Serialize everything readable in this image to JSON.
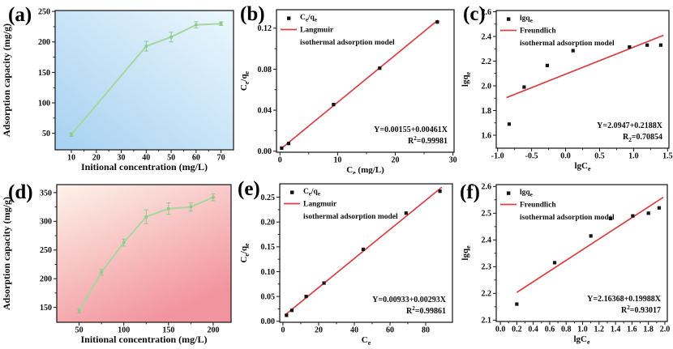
{
  "figure_title": "Adsorption isotherm figure panels",
  "accent_colors": {
    "fit_line_red": "#d84048",
    "curve_green": "#a6d79f",
    "marker_black": "#141414"
  },
  "chart_data": [
    {
      "id": "a",
      "tag": "(a)",
      "type": "line",
      "xlabel": "Initional concentration (mg/L)",
      "ylabel": "Adsorption capacity (mg/g)",
      "x": [
        10,
        40,
        50,
        60,
        70
      ],
      "y": [
        48,
        193,
        208,
        228,
        230
      ],
      "yerr": [
        3,
        8,
        8,
        5,
        3
      ],
      "xticks": [
        "10",
        "20",
        "30",
        "40",
        "50",
        "60",
        "70"
      ],
      "yticks": [
        "50",
        "100",
        "150",
        "200",
        "250"
      ],
      "xlim": [
        3.5,
        75
      ],
      "ylim": [
        23,
        251.5
      ],
      "grid": false,
      "line_color": "#a6d79f",
      "marker_color": "#8fc98b",
      "bg": {
        "from": "#ecf7fd",
        "to": "#a6d1f1",
        "direction": "tr-bl"
      }
    },
    {
      "id": "b",
      "tag": "(b)",
      "type": "scatter",
      "xlabel": "C~e~ (mg/L)",
      "ylabel": "C~e~/q~e~",
      "points_x": [
        0.3,
        1.5,
        9.3,
        17.3,
        27.3
      ],
      "points_y": [
        0.003,
        0.0075,
        0.0455,
        0.081,
        0.126
      ],
      "fit_line": {
        "intercept": 0.00155,
        "slope": 0.00461,
        "x_start": 0.2,
        "x_end": 27.4,
        "color": "#d84048"
      },
      "legend": {
        "marker_label": "C~e~/q~e~",
        "line_label": "Langmuir",
        "line_label2": "isothermal adsorption model",
        "position": "top-left"
      },
      "annotations": [
        "Y=0.00155+0.00461X",
        "R^2^=0.99981"
      ],
      "xticks": [
        "0",
        "10",
        "20",
        "30"
      ],
      "yticks": [
        "0.00",
        "0.04",
        "0.08",
        "0.12"
      ],
      "xlim": [
        -0.6,
        30.2
      ],
      "ylim": [
        -0.001,
        0.138
      ],
      "grid": false,
      "marker_color": "#141414"
    },
    {
      "id": "c",
      "tag": "(c)",
      "type": "scatter",
      "xlabel": "lgC~e~",
      "ylabel": "lgq~e~",
      "points_x": [
        -0.83,
        -0.61,
        -0.27,
        0.11,
        0.94,
        1.2,
        1.4
      ],
      "points_y": [
        1.69,
        1.99,
        2.165,
        2.285,
        2.315,
        2.33,
        2.33
      ],
      "fit_line": {
        "intercept": 2.0947,
        "slope": 0.2188,
        "x_start": -0.87,
        "x_end": 1.44,
        "color": "#d84048"
      },
      "legend": {
        "marker_label": "lgq~e~",
        "line_label": "Freundlich",
        "line_label2": "isothermal adsorption model",
        "position": "top-left"
      },
      "annotations": [
        "Y=2.0947+0.2188X",
        "R~2~=0.70854"
      ],
      "xticks": [
        "-1.0",
        "-0.5",
        "0.0",
        "0.5",
        "1.0",
        "1.5"
      ],
      "yticks": [
        "1.6",
        "1.8",
        "2.0",
        "2.2",
        "2.4",
        "2.6"
      ],
      "xlim": [
        -1.02,
        1.52
      ],
      "ylim": [
        1.495,
        2.61
      ],
      "grid": false,
      "marker_color": "#141414"
    },
    {
      "id": "d",
      "tag": "(d)",
      "type": "line",
      "xlabel": "Initional concentration (mg/L)",
      "ylabel": "Adsorption capacity (mg/g)",
      "x": [
        50,
        75,
        100,
        125,
        150,
        175,
        200
      ],
      "y": [
        144,
        211,
        263,
        308,
        322,
        325,
        342
      ],
      "yerr": [
        4,
        5,
        6,
        12,
        10,
        7,
        6
      ],
      "xticks": [
        "50",
        "100",
        "150",
        "200"
      ],
      "yticks": [
        "150",
        "200",
        "250",
        "300",
        "350"
      ],
      "xlim": [
        25,
        220
      ],
      "ylim": [
        124,
        364
      ],
      "grid": false,
      "line_color": "#a6d79f",
      "marker_color": "#8fc98b",
      "bg": {
        "from": "#fdf4ea",
        "to": "#f2949e",
        "direction": "tl-br"
      }
    },
    {
      "id": "e",
      "tag": "(e)",
      "type": "scatter",
      "xlabel": "C~e~",
      "ylabel": "C~e~/q~e~",
      "points_x": [
        2,
        5,
        13,
        23,
        45,
        69,
        88
      ],
      "points_y": [
        0.012,
        0.022,
        0.05,
        0.077,
        0.145,
        0.218,
        0.262
      ],
      "fit_line": {
        "intercept": 0.00933,
        "slope": 0.00293,
        "x_start": 1.0,
        "x_end": 89.0,
        "color": "#d84048"
      },
      "legend": {
        "marker_label": "C~e~/q~e~",
        "line_label": "Langmuir",
        "line_label2": "isothermal adsorption model",
        "position": "top-left"
      },
      "annotations": [
        "Y=0.00933+0.00293X",
        "R^2^=0.99861"
      ],
      "xticks": [
        "0",
        "20",
        "40",
        "60",
        "80"
      ],
      "yticks": [
        "0.00",
        "0.05",
        "0.10",
        "0.15",
        "0.20",
        "0.25"
      ],
      "xlim": [
        -1.8,
        95
      ],
      "ylim": [
        -0.002,
        0.277
      ],
      "grid": false,
      "marker_color": "#141414"
    },
    {
      "id": "f",
      "tag": "(f)",
      "type": "scatter",
      "xlabel": "lgC~e~",
      "ylabel": "lgq~e~",
      "points_x": [
        0.2,
        0.66,
        1.1,
        1.34,
        1.61,
        1.8,
        1.93
      ],
      "points_y": [
        2.16,
        2.315,
        2.415,
        2.48,
        2.49,
        2.5,
        2.52
      ],
      "fit_line": {
        "intercept": 2.16368,
        "slope": 0.19988,
        "x_start": 0.2,
        "x_end": 1.98,
        "color": "#d84048"
      },
      "legend": {
        "marker_label": "lgq~e~",
        "line_label": "Freundlich",
        "line_label2": "isothermal adsorption model",
        "position": "top-left"
      },
      "annotations": [
        "Y=2.16368+0.19988X",
        "R^2^=0.93017"
      ],
      "xticks": [
        "0.0",
        "0.2",
        "0.4",
        "0.6",
        "0.8",
        "1.0",
        "1.2",
        "1.4",
        "1.6",
        "1.8",
        "2.0"
      ],
      "yticks": [
        "2.1",
        "2.2",
        "2.3",
        "2.4",
        "2.5",
        "2.6"
      ],
      "xlim": [
        -0.05,
        2.03
      ],
      "ylim": [
        2.095,
        2.607
      ],
      "grid": false,
      "marker_color": "#141414"
    }
  ]
}
